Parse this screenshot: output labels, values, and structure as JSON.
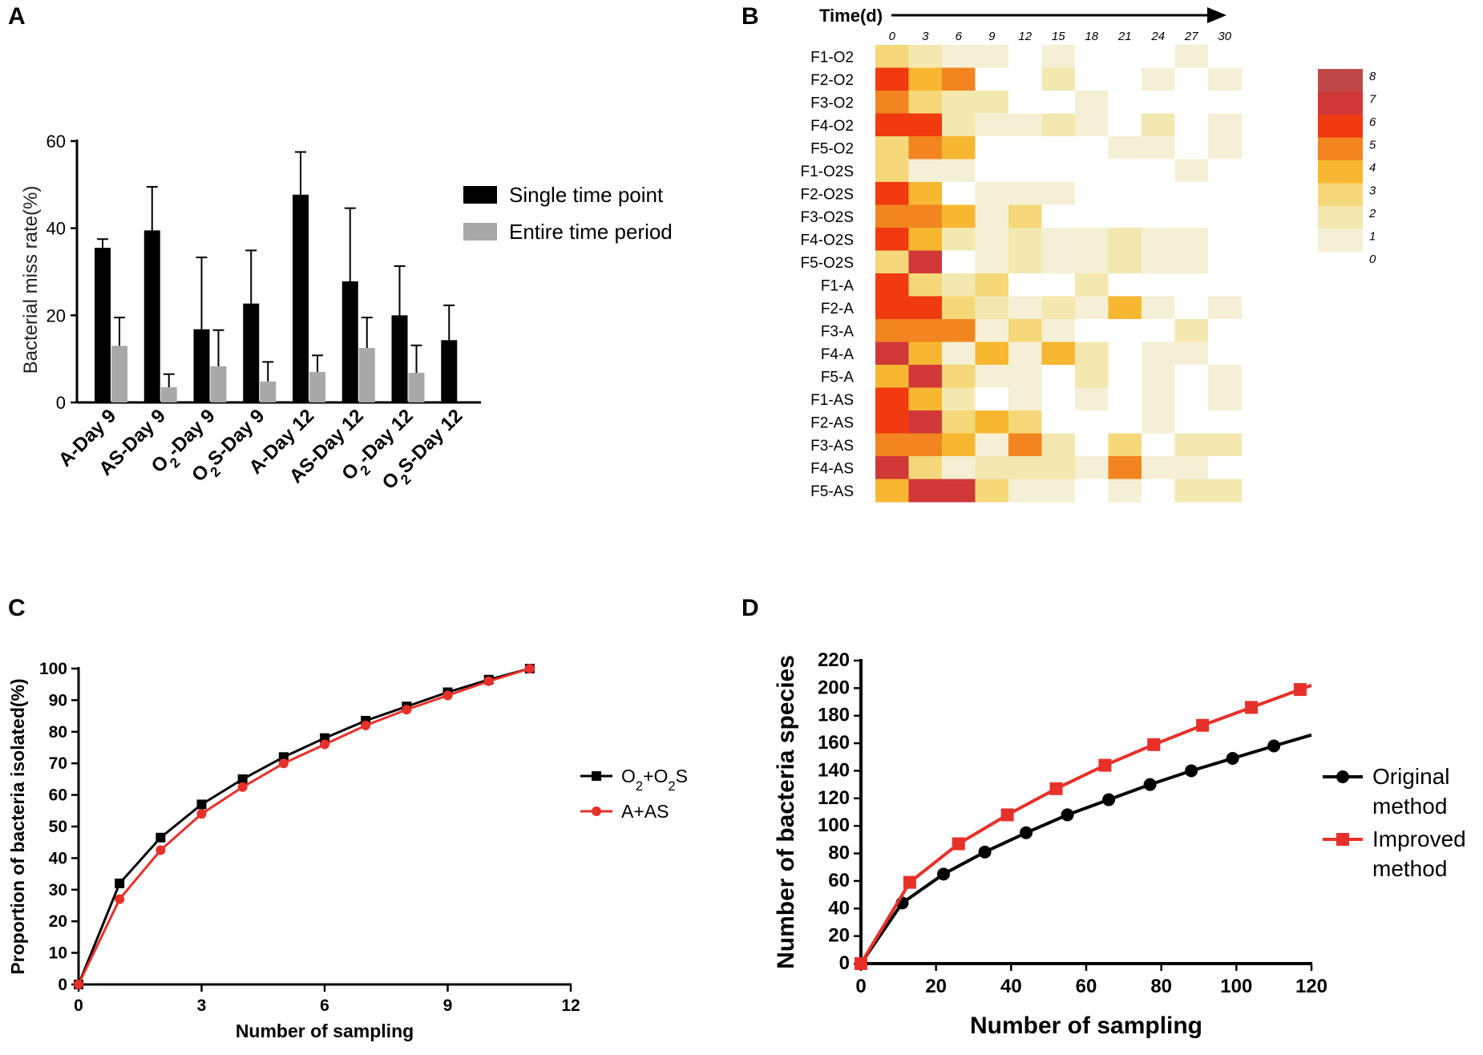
{
  "panel_letters": {
    "a": "A",
    "b": "B",
    "c": "C",
    "d": "D"
  },
  "chart_data": [
    {
      "id": "A",
      "type": "bar",
      "ylabel": "Bacterial miss rate(%)",
      "ylim": [
        0,
        60
      ],
      "yticks": [
        0,
        20,
        40,
        60
      ],
      "categories": [
        "A-Day 9",
        "AS-Day 9",
        "O2-Day 9",
        "O2S-Day 9",
        "A-Day 12",
        "AS-Day 12",
        "O2-Day 12",
        "O2S-Day 12"
      ],
      "series": [
        {
          "name": "Single time point",
          "color": "#000000",
          "values": [
            35.5,
            39.5,
            16.8,
            22.7,
            47.7,
            27.8,
            20.0,
            14.3
          ],
          "errors": [
            2.0,
            10.0,
            16.5,
            12.2,
            9.8,
            16.8,
            11.3,
            8.0
          ]
        },
        {
          "name": "Entire time period",
          "color": "#a8a8a8",
          "values": [
            13.0,
            3.5,
            8.3,
            4.8,
            7.0,
            12.5,
            6.8,
            null
          ],
          "errors": [
            6.5,
            3.0,
            8.3,
            4.5,
            3.8,
            7.0,
            6.3,
            null
          ]
        }
      ],
      "legend_position": "right"
    },
    {
      "id": "B",
      "type": "heatmap",
      "time_label": "Time(d)",
      "columns": [
        "0",
        "3",
        "6",
        "9",
        "12",
        "15",
        "18",
        "21",
        "24",
        "27",
        "30"
      ],
      "rows": [
        "F1-O2",
        "F2-O2",
        "F3-O2",
        "F4-O2",
        "F5-O2",
        "F1-O2S",
        "F2-O2S",
        "F3-O2S",
        "F4-O2S",
        "F5-O2S",
        "F1-A",
        "F2-A",
        "F3-A",
        "F4-A",
        "F5-A",
        "F1-AS",
        "F2-AS",
        "F3-AS",
        "F4-AS",
        "F5-AS"
      ],
      "values": [
        [
          3,
          2,
          1,
          1,
          0,
          1,
          0,
          0,
          0,
          1,
          0
        ],
        [
          6,
          4,
          5,
          0,
          0,
          2,
          0,
          0,
          1,
          0,
          1
        ],
        [
          5,
          3,
          2,
          2,
          0,
          0,
          1,
          0,
          0,
          0,
          0
        ],
        [
          6,
          6,
          2,
          1,
          1,
          2,
          1,
          0,
          2,
          0,
          1
        ],
        [
          3,
          5,
          4,
          0,
          0,
          0,
          0,
          1,
          1,
          0,
          1
        ],
        [
          3,
          1,
          1,
          0,
          0,
          0,
          0,
          0,
          0,
          1,
          0
        ],
        [
          6,
          4,
          0,
          1,
          1,
          1,
          0,
          0,
          0,
          0,
          0
        ],
        [
          5,
          5,
          4,
          1,
          3,
          0,
          0,
          0,
          0,
          0,
          0
        ],
        [
          6,
          4,
          2,
          1,
          2,
          1,
          1,
          2,
          1,
          1,
          0
        ],
        [
          3,
          7,
          0,
          1,
          2,
          1,
          1,
          2,
          1,
          1,
          0
        ],
        [
          6,
          3,
          2,
          3,
          0,
          0,
          2,
          0,
          0,
          0,
          0
        ],
        [
          6,
          6,
          3,
          2,
          1,
          2,
          1,
          4,
          1,
          0,
          1
        ],
        [
          5,
          5,
          5,
          1,
          3,
          1,
          0,
          0,
          0,
          2,
          0
        ],
        [
          7,
          4,
          1,
          4,
          1,
          4,
          2,
          0,
          1,
          1,
          0
        ],
        [
          4,
          7,
          3,
          1,
          1,
          0,
          2,
          0,
          1,
          0,
          1
        ],
        [
          6,
          4,
          2,
          0,
          1,
          0,
          1,
          0,
          1,
          0,
          1
        ],
        [
          6,
          7,
          3,
          4,
          3,
          0,
          0,
          0,
          1,
          0,
          0
        ],
        [
          5,
          5,
          4,
          1,
          5,
          2,
          0,
          3,
          0,
          2,
          2
        ],
        [
          7,
          3,
          1,
          2,
          2,
          2,
          1,
          5,
          1,
          1,
          0
        ],
        [
          4,
          7,
          7,
          3,
          1,
          1,
          0,
          1,
          0,
          2,
          2
        ]
      ],
      "colorbar_labels": [
        "8",
        "7",
        "6",
        "5",
        "4",
        "3",
        "2",
        "1",
        "0"
      ],
      "colors": {
        "0": "#ffffff",
        "1": "#f5f0d5",
        "2": "#f3e8b0",
        "3": "#f5d879",
        "4": "#f7b731",
        "5": "#f28520",
        "6": "#f03a10",
        "7": "#d03838",
        "8": "#c04848"
      }
    },
    {
      "id": "C",
      "type": "line",
      "xlabel": "Number of sampling",
      "ylabel": "Proportion of bacteria isolated(%)",
      "xlim": [
        0,
        12
      ],
      "ylim": [
        0,
        100
      ],
      "xticks": [
        0,
        3,
        6,
        9,
        12
      ],
      "yticks": [
        0,
        10,
        20,
        30,
        40,
        50,
        60,
        70,
        80,
        90,
        100
      ],
      "series": [
        {
          "name": "O2+O2S",
          "color": "#000000",
          "marker": "square",
          "x": [
            0,
            1,
            2,
            3,
            4,
            5,
            6,
            7,
            8,
            9,
            10,
            11
          ],
          "y": [
            0,
            32,
            46.5,
            57,
            65,
            72,
            78,
            83.5,
            88,
            92.5,
            96.5,
            100
          ]
        },
        {
          "name": "A+AS",
          "color": "#e8302a",
          "marker": "circle",
          "x": [
            0,
            1,
            2,
            3,
            4,
            5,
            6,
            7,
            8,
            9,
            10,
            11
          ],
          "y": [
            0,
            27,
            42.5,
            54,
            62.5,
            70,
            76,
            82,
            87,
            91.5,
            96,
            100
          ]
        }
      ],
      "legend_position": "right"
    },
    {
      "id": "D",
      "type": "line",
      "xlabel": "Number of sampling",
      "ylabel": "Number of bacteria species",
      "xlim": [
        0,
        120
      ],
      "ylim": [
        0,
        220
      ],
      "xticks": [
        0,
        20,
        40,
        60,
        80,
        100,
        120
      ],
      "yticks": [
        0,
        20,
        40,
        60,
        80,
        100,
        120,
        140,
        160,
        180,
        200,
        220
      ],
      "series": [
        {
          "name": "Original method",
          "color": "#000000",
          "marker": "circle",
          "x": [
            0,
            11,
            22,
            33,
            44,
            55,
            66,
            77,
            88,
            99,
            110,
            120
          ],
          "y": [
            0,
            44,
            65,
            81,
            95,
            108,
            119,
            130,
            140,
            149,
            158,
            166
          ]
        },
        {
          "name": "Improved method",
          "color": "#e8302a",
          "marker": "square",
          "x": [
            0,
            13,
            26,
            39,
            52,
            65,
            78,
            91,
            104,
            117,
            120
          ],
          "y": [
            0,
            59,
            87,
            108,
            127,
            144,
            159,
            173,
            186,
            199,
            202
          ]
        }
      ],
      "legend_position": "right"
    }
  ]
}
